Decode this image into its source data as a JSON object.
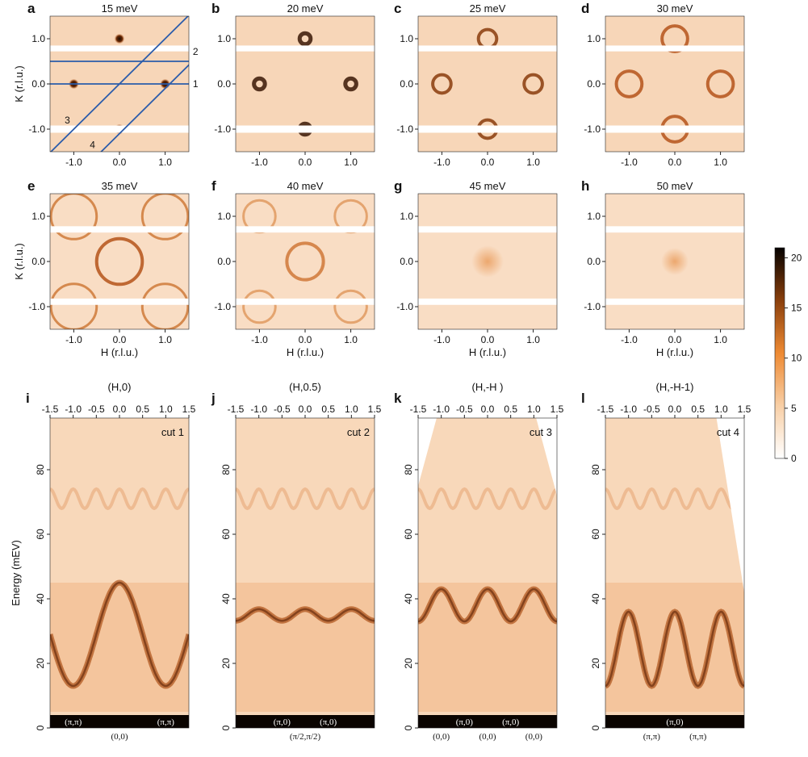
{
  "figure": {
    "maps": [
      {
        "letter": "a",
        "title": "15 meV"
      },
      {
        "letter": "b",
        "title": "20 meV"
      },
      {
        "letter": "c",
        "title": "25 meV"
      },
      {
        "letter": "d",
        "title": "30 meV"
      },
      {
        "letter": "e",
        "title": "35 meV"
      },
      {
        "letter": "f",
        "title": "40 meV"
      },
      {
        "letter": "g",
        "title": "45 meV"
      },
      {
        "letter": "h",
        "title": "50 meV"
      }
    ],
    "map_axes": {
      "xlim": [
        -1.52,
        1.52
      ],
      "ylim": [
        -1.5,
        1.5
      ],
      "ticks": [
        {
          "value": -1,
          "label": "-1.0"
        },
        {
          "value": 0,
          "label": "0.0"
        },
        {
          "value": 1,
          "label": "1.0"
        }
      ],
      "xlabel": "H (r.l.u.)",
      "ylabel": "K (r.l.u.)"
    },
    "cut_numbers": [
      "1",
      "2",
      "3",
      "4"
    ],
    "colorbar": {
      "lim": [
        0,
        21
      ],
      "ticks": [
        0,
        5,
        10,
        15,
        20
      ]
    },
    "cuts": [
      {
        "letter": "i",
        "title": "(H,0)",
        "name": "cut 1",
        "inside": [
          "(π,π)",
          "(π,π)"
        ],
        "below": [
          "(0,0)"
        ]
      },
      {
        "letter": "j",
        "title": "(H,0.5)",
        "name": "cut 2",
        "inside": [
          "(π,0)",
          "(π,0)"
        ],
        "below": [
          "(π/2,π/2)"
        ]
      },
      {
        "letter": "k",
        "title": "(H,-H )",
        "name": "cut 3",
        "inside": [
          "(π,0)",
          "(π,0)"
        ],
        "below": [
          "(0,0)",
          "(0,0)",
          "(0,0)"
        ]
      },
      {
        "letter": "l",
        "title": "(H,-H-1)",
        "name": "cut 4",
        "inside": [
          "(π,0)"
        ],
        "below": [
          "(π,π)",
          "(π,π)"
        ]
      }
    ],
    "cut_axes": {
      "xlim": [
        -1.5,
        1.5
      ],
      "ylim": [
        0,
        96
      ],
      "xticks": [
        {
          "value": -1.5,
          "label": "-1.5"
        },
        {
          "value": -1,
          "label": "-1.0"
        },
        {
          "value": -0.5,
          "label": "-0.5"
        },
        {
          "value": 0,
          "label": "0.0"
        },
        {
          "value": 0.5,
          "label": "0.5"
        },
        {
          "value": 1,
          "label": "1.0"
        },
        {
          "value": 1.5,
          "label": "1.5"
        }
      ],
      "yticks": [
        0,
        20,
        40,
        60,
        80
      ],
      "ylabel": "Energy (mEV)"
    }
  }
}
